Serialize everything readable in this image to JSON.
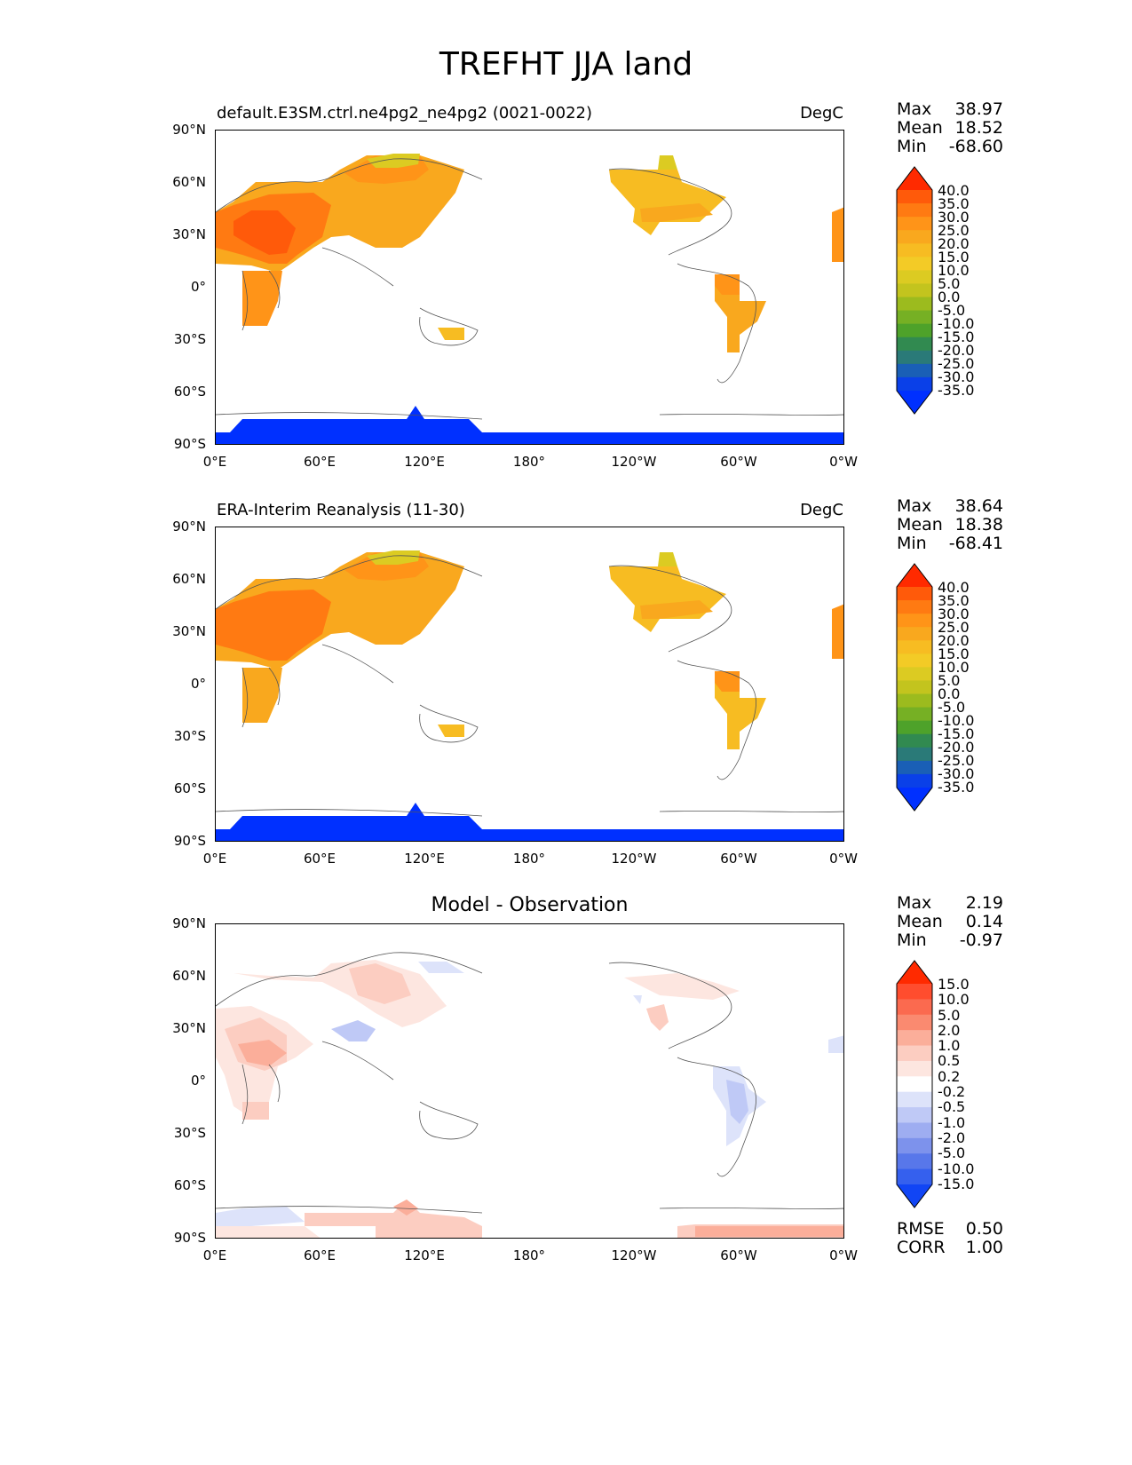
{
  "title": "TREFHT JJA land",
  "panels": [
    {
      "left_title": "default.E3SM.ctrl.ne4pg2_ne4pg2 (0021-0022)",
      "right_title": "DegC",
      "center_title": "",
      "stats": [
        {
          "label": "Max",
          "value": "38.97"
        },
        {
          "label": "Mean",
          "value": "18.52"
        },
        {
          "label": "Min",
          "value": "-68.60"
        }
      ],
      "extra_stats": []
    },
    {
      "left_title": "ERA-Interim Reanalysis (11-30)",
      "right_title": "DegC",
      "center_title": "",
      "stats": [
        {
          "label": "Max",
          "value": "38.64"
        },
        {
          "label": "Mean",
          "value": "18.38"
        },
        {
          "label": "Min",
          "value": "-68.41"
        }
      ],
      "extra_stats": []
    },
    {
      "left_title": "",
      "right_title": "",
      "center_title": "Model - Observation",
      "stats": [
        {
          "label": "Max",
          "value": "2.19"
        },
        {
          "label": "Mean",
          "value": "0.14"
        },
        {
          "label": "Min",
          "value": "-0.97"
        }
      ],
      "extra_stats": [
        {
          "label": "RMSE",
          "value": "0.50"
        },
        {
          "label": "CORR",
          "value": "1.00"
        }
      ]
    }
  ],
  "lat_ticks": [
    "90°N",
    "60°N",
    "30°N",
    "0°",
    "30°S",
    "60°S",
    "90°S"
  ],
  "lon_ticks": [
    "0°E",
    "60°E",
    "120°E",
    "180°",
    "120°W",
    "60°W",
    "0°W"
  ],
  "colorbars": {
    "temperature": {
      "labels": [
        "40.0",
        "35.0",
        "30.0",
        "25.0",
        "20.0",
        "15.0",
        "10.0",
        "5.0",
        "0.0",
        "-5.0",
        "-10.0",
        "-15.0",
        "-20.0",
        "-25.0",
        "-30.0",
        "-35.0"
      ],
      "colors": [
        "#ff2a00",
        "#ff5a0a",
        "#ff7a12",
        "#ff9418",
        "#f9a81e",
        "#f7bc22",
        "#f3cb26",
        "#dccb22",
        "#c3c41e",
        "#9cbb1e",
        "#76b024",
        "#4ea22a",
        "#318a50",
        "#2a7a78",
        "#1a5fb6",
        "#0a40e8",
        "#0030ff"
      ]
    },
    "difference": {
      "labels": [
        "15.0",
        "10.0",
        "5.0",
        "2.0",
        "1.0",
        "0.5",
        "0.2",
        "-0.2",
        "-0.5",
        "-1.0",
        "-2.0",
        "-5.0",
        "-10.0",
        "-15.0"
      ],
      "colors": [
        "#ff2a00",
        "#ff4d2e",
        "#fb6a4f",
        "#fa8a70",
        "#fbae9a",
        "#fccdc1",
        "#fde6e0",
        "#ffffff",
        "#dde3fa",
        "#bfc9f6",
        "#9eadf1",
        "#7d92ec",
        "#5877ea",
        "#3560ee",
        "#1145f5"
      ]
    }
  }
}
